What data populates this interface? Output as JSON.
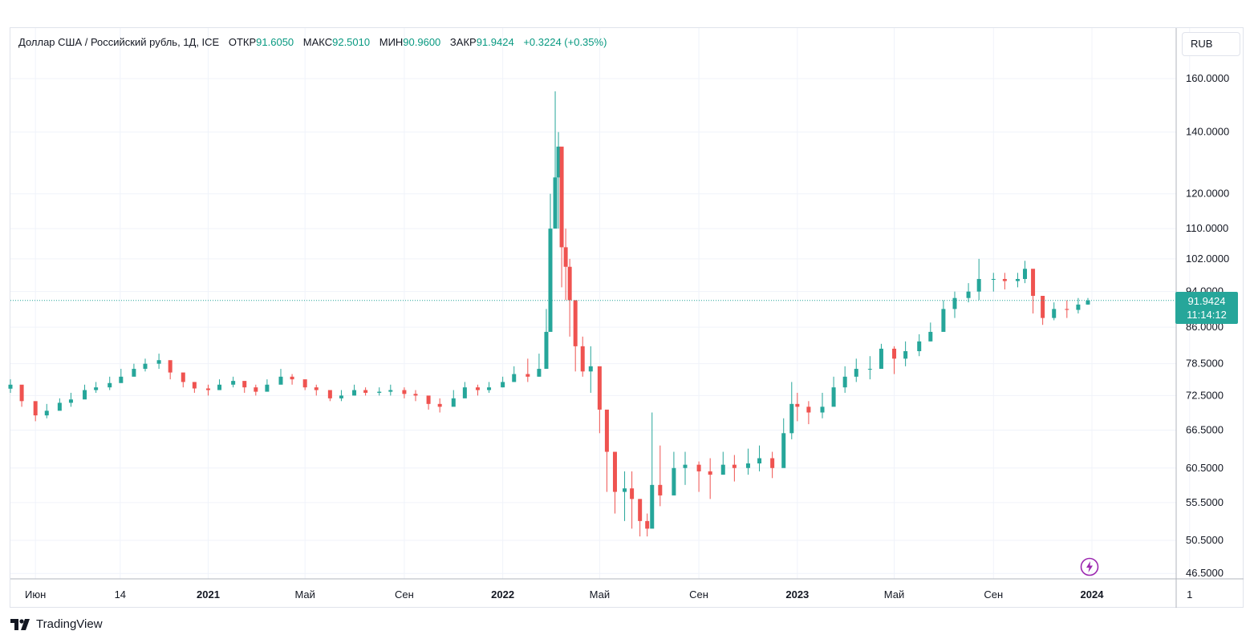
{
  "legend": {
    "symbol": "Доллар США / Российский рубль, 1Д, ICE",
    "open_label": "ОТКР",
    "open_value": "91.6050",
    "high_label": "МАКС",
    "high_value": "92.5010",
    "low_label": "МИН",
    "low_value": "90.9600",
    "close_label": "ЗАКР",
    "close_value": "91.9424",
    "change": "+0.3224 (+0.35%)"
  },
  "currency_button": "RUB",
  "last_price": {
    "value": "91.9424",
    "countdown": "11:14:12"
  },
  "branding": "TradingView",
  "colors": {
    "up": "#26a69a",
    "down": "#ef5350",
    "grid": "#f0f3fa",
    "price_line": "#26a69a",
    "text": "#131722",
    "lightning": "#9c27b0"
  },
  "icons": [
    "tradingview-logo-icon",
    "lightning-icon"
  ],
  "chart_data": {
    "type": "candlestick",
    "title": "Доллар США / Российский рубль, 1Д, ICE",
    "scale": "log",
    "grid": true,
    "legend_position": "top-left",
    "ylim": [
      45.5,
      170
    ],
    "y_ticks": [
      "160.0000",
      "140.0000",
      "120.0000",
      "110.0000",
      "102.0000",
      "94.0000",
      "86.0000",
      "78.5000",
      "72.5000",
      "66.5000",
      "60.5000",
      "55.5000",
      "50.5000",
      "46.5000"
    ],
    "x_ticks": [
      {
        "label": "Июн",
        "date": "2020-06-01",
        "bold": false
      },
      {
        "label": "14",
        "date": "2020-09-14",
        "bold": false
      },
      {
        "label": "2021",
        "date": "2021-01-01",
        "bold": true
      },
      {
        "label": "Май",
        "date": "2021-05-01",
        "bold": false
      },
      {
        "label": "Сен",
        "date": "2021-09-01",
        "bold": false
      },
      {
        "label": "2022",
        "date": "2022-01-01",
        "bold": true
      },
      {
        "label": "Май",
        "date": "2022-05-01",
        "bold": false
      },
      {
        "label": "Сен",
        "date": "2022-09-01",
        "bold": false
      },
      {
        "label": "2023",
        "date": "2023-01-01",
        "bold": true
      },
      {
        "label": "Май",
        "date": "2023-05-01",
        "bold": false
      },
      {
        "label": "Сен",
        "date": "2023-09-01",
        "bold": false
      },
      {
        "label": "2024",
        "date": "2024-01-01",
        "bold": true
      },
      {
        "label": "1",
        "date": "2024-05-01",
        "bold": false
      }
    ],
    "series": [
      {
        "x": [
          "2020-05-01",
          "2020-05-15",
          "2020-06-01",
          "2020-06-15",
          "2020-07-01",
          "2020-07-15",
          "2020-08-01",
          "2020-08-15",
          "2020-09-01",
          "2020-09-15",
          "2020-10-01",
          "2020-10-15",
          "2020-11-01",
          "2020-11-15",
          "2020-12-01",
          "2020-12-15",
          "2021-01-01",
          "2021-01-15",
          "2021-02-01",
          "2021-02-15",
          "2021-03-01",
          "2021-03-15",
          "2021-04-01",
          "2021-04-15",
          "2021-05-01",
          "2021-05-15",
          "2021-06-01",
          "2021-06-15",
          "2021-07-01",
          "2021-07-15",
          "2021-08-01",
          "2021-08-15",
          "2021-09-01",
          "2021-09-15",
          "2021-10-01",
          "2021-10-15",
          "2021-11-01",
          "2021-11-15",
          "2021-12-01",
          "2021-12-15",
          "2022-01-01",
          "2022-01-15",
          "2022-02-01",
          "2022-02-15",
          "2022-02-24",
          "2022-03-01",
          "2022-03-07",
          "2022-03-11",
          "2022-03-15",
          "2022-03-20",
          "2022-03-25",
          "2022-04-01",
          "2022-04-10",
          "2022-04-20",
          "2022-05-01",
          "2022-05-10",
          "2022-05-20",
          "2022-06-01",
          "2022-06-10",
          "2022-06-20",
          "2022-06-29",
          "2022-07-05",
          "2022-07-15",
          "2022-08-01",
          "2022-08-15",
          "2022-09-01",
          "2022-09-15",
          "2022-10-01",
          "2022-10-15",
          "2022-11-01",
          "2022-11-15",
          "2022-12-01",
          "2022-12-15",
          "2022-12-25",
          "2023-01-01",
          "2023-01-15",
          "2023-02-01",
          "2023-02-15",
          "2023-03-01",
          "2023-03-15",
          "2023-04-01",
          "2023-04-15",
          "2023-05-01",
          "2023-05-15",
          "2023-06-01",
          "2023-06-15",
          "2023-07-01",
          "2023-07-15",
          "2023-08-01",
          "2023-08-14",
          "2023-09-01",
          "2023-09-15",
          "2023-10-01",
          "2023-10-10",
          "2023-10-20",
          "2023-11-01",
          "2023-11-15",
          "2023-12-01",
          "2023-12-15",
          "2023-12-27"
        ],
        "close": [
          74.5,
          71.5,
          69.0,
          69.8,
          71.2,
          71.8,
          73.5,
          74.0,
          74.8,
          76.0,
          77.5,
          78.5,
          79.2,
          76.8,
          75.0,
          73.8,
          73.5,
          74.5,
          75.2,
          74.0,
          73.2,
          74.5,
          76.0,
          75.5,
          74.0,
          73.5,
          72.0,
          72.5,
          73.5,
          73.0,
          73.2,
          73.5,
          72.8,
          72.5,
          71.0,
          70.5,
          72.0,
          74.0,
          73.5,
          74.0,
          75.0,
          76.5,
          76.0,
          77.5,
          85.0,
          110.0,
          125.0,
          135.0,
          105.0,
          100.0,
          92.0,
          82.0,
          77.0,
          78.0,
          70.0,
          63.0,
          57.0,
          57.5,
          56.0,
          53.0,
          52.0,
          58.0,
          56.5,
          60.5,
          61.0,
          60.0,
          59.5,
          61.0,
          60.5,
          61.2,
          62.0,
          60.5,
          66.0,
          71.0,
          70.5,
          69.5,
          70.5,
          74.0,
          76.0,
          77.5,
          77.5,
          81.5,
          79.5,
          81.0,
          83.0,
          85.0,
          90.0,
          92.5,
          94.0,
          97.0,
          97.0,
          96.5,
          97.0,
          99.5,
          93.0,
          88.0,
          90.0,
          89.8,
          91.0,
          91.9424
        ],
        "high": [
          75.5,
          73.0,
          70.5,
          71.0,
          72.0,
          73.0,
          74.5,
          75.0,
          76.0,
          77.5,
          78.5,
          79.5,
          80.5,
          78.0,
          76.0,
          75.0,
          74.5,
          75.5,
          76.0,
          75.0,
          74.5,
          75.5,
          77.5,
          76.5,
          75.0,
          74.5,
          73.0,
          73.5,
          74.5,
          74.0,
          74.0,
          74.5,
          74.0,
          73.5,
          72.0,
          72.0,
          73.5,
          75.0,
          74.5,
          75.0,
          76.0,
          78.0,
          79.5,
          80.5,
          90.0,
          120.0,
          155.0,
          140.0,
          120.0,
          110.0,
          102.0,
          90.0,
          84.0,
          82.0,
          74.0,
          69.0,
          63.0,
          60.0,
          60.0,
          56.0,
          54.0,
          69.5,
          64.0,
          63.0,
          63.0,
          61.5,
          62.0,
          63.0,
          62.5,
          63.5,
          64.0,
          63.0,
          68.5,
          75.0,
          73.0,
          71.5,
          73.0,
          76.0,
          78.0,
          79.5,
          80.0,
          82.5,
          82.0,
          83.0,
          84.5,
          87.0,
          92.0,
          94.0,
          96.0,
          102.0,
          98.5,
          98.5,
          98.5,
          101.5,
          98.0,
          90.5,
          91.5,
          92.0,
          92.5,
          92.501
        ],
        "low": [
          73.0,
          70.5,
          68.0,
          68.5,
          70.0,
          70.5,
          72.5,
          73.0,
          73.5,
          75.0,
          76.5,
          77.0,
          77.5,
          75.5,
          74.0,
          73.0,
          72.5,
          73.5,
          74.0,
          73.0,
          72.5,
          73.5,
          75.0,
          74.5,
          73.5,
          72.5,
          71.5,
          71.5,
          72.5,
          72.5,
          72.5,
          72.5,
          72.0,
          71.5,
          70.0,
          69.5,
          71.0,
          72.5,
          72.5,
          73.0,
          74.0,
          75.0,
          75.0,
          76.0,
          78.5,
          95.0,
          115.0,
          110.0,
          95.0,
          92.0,
          84.0,
          77.0,
          76.0,
          73.0,
          66.0,
          57.0,
          54.0,
          53.0,
          52.0,
          51.0,
          51.0,
          54.0,
          55.0,
          58.0,
          58.0,
          57.0,
          56.0,
          59.5,
          58.5,
          59.5,
          60.0,
          59.0,
          61.5,
          65.0,
          68.0,
          67.5,
          68.5,
          71.5,
          73.0,
          75.0,
          75.5,
          78.0,
          76.5,
          78.0,
          80.0,
          83.0,
          87.0,
          88.0,
          91.5,
          92.0,
          94.0,
          94.5,
          95.0,
          96.0,
          89.0,
          86.5,
          87.5,
          88.0,
          89.0,
          90.96
        ]
      }
    ]
  }
}
